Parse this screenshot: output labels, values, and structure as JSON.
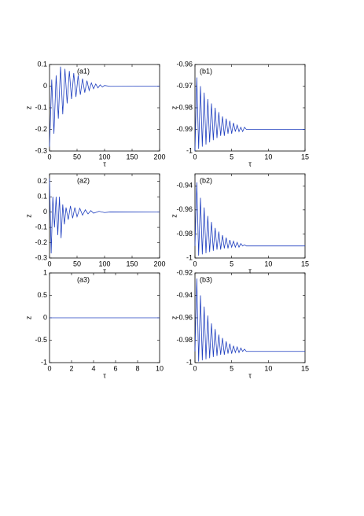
{
  "chart_data": [
    {
      "type": "line",
      "label": "(a1)",
      "xlabel": "τ",
      "ylabel": "z",
      "color": "#1f3fbf",
      "x": [
        0,
        4,
        8,
        12,
        16,
        20,
        24,
        28,
        32,
        36,
        40,
        44,
        48,
        52,
        56,
        60,
        64,
        68,
        72,
        76,
        80,
        84,
        88,
        92,
        96,
        100,
        110,
        200
      ],
      "values": [
        -0.28,
        0.03,
        -0.22,
        0.05,
        -0.15,
        0.09,
        -0.13,
        0.08,
        -0.08,
        0.07,
        -0.06,
        0.06,
        -0.05,
        0.05,
        -0.04,
        0.035,
        -0.03,
        0.025,
        -0.02,
        0.015,
        -0.012,
        0.01,
        -0.008,
        0.006,
        -0.004,
        0.003,
        -0.001,
        0
      ],
      "xlim": [
        0,
        200
      ],
      "xticks": [
        0,
        50,
        100,
        150,
        200
      ],
      "ylim": [
        -0.3,
        0.1
      ],
      "yticks": [
        0.1,
        0,
        -0.1,
        -0.2,
        -0.3
      ]
    },
    {
      "type": "line",
      "label": "(b1)",
      "xlabel": "τ",
      "ylabel": "z",
      "color": "#1f3fbf",
      "x": [
        0,
        0.25,
        0.5,
        0.75,
        1,
        1.25,
        1.5,
        1.75,
        2,
        2.25,
        2.5,
        2.75,
        3,
        3.25,
        3.5,
        3.75,
        4,
        4.25,
        4.5,
        4.75,
        5,
        5.25,
        5.5,
        5.75,
        6,
        6.25,
        6.5,
        6.75,
        7,
        15
      ],
      "values": [
        -1,
        -0.966,
        -0.999,
        -0.97,
        -0.998,
        -0.973,
        -0.997,
        -0.976,
        -0.996,
        -0.978,
        -0.995,
        -0.98,
        -0.994,
        -0.982,
        -0.993,
        -0.984,
        -0.993,
        -0.985,
        -0.992,
        -0.986,
        -0.992,
        -0.987,
        -0.991,
        -0.988,
        -0.991,
        -0.989,
        -0.991,
        -0.989,
        -0.99,
        -0.99
      ],
      "xlim": [
        0,
        15
      ],
      "xticks": [
        0,
        5,
        10,
        15
      ],
      "ylim": [
        -1,
        -0.96
      ],
      "yticks": [
        -0.96,
        -0.97,
        -0.98,
        -0.99,
        -1
      ]
    },
    {
      "type": "line",
      "label": "(a2)",
      "xlabel": "τ",
      "ylabel": "z",
      "color": "#1f3fbf",
      "x": [
        0,
        3,
        6,
        9,
        12,
        15,
        18,
        21,
        24,
        27,
        30,
        34,
        38,
        42,
        46,
        50,
        55,
        60,
        65,
        70,
        75,
        80,
        90,
        100,
        110,
        200
      ],
      "values": [
        0.22,
        -0.27,
        0.1,
        -0.1,
        0.1,
        -0.15,
        0.1,
        -0.17,
        0.05,
        -0.08,
        0.03,
        -0.05,
        0.04,
        -0.04,
        0.03,
        -0.03,
        0.025,
        -0.02,
        0.015,
        -0.012,
        0.01,
        -0.007,
        0.005,
        -0.003,
        0.001,
        0
      ],
      "xlim": [
        0,
        200
      ],
      "xticks": [
        0,
        50,
        100,
        150,
        200
      ],
      "ylim": [
        -0.3,
        0.25
      ],
      "yticks": [
        0.2,
        0.1,
        0,
        -0.1,
        -0.2,
        -0.3
      ]
    },
    {
      "type": "line",
      "label": "(b2)",
      "xlabel": "τ",
      "ylabel": "z",
      "color": "#1f3fbf",
      "x": [
        0,
        0.25,
        0.5,
        0.75,
        1,
        1.25,
        1.5,
        1.75,
        2,
        2.25,
        2.5,
        2.75,
        3,
        3.25,
        3.5,
        3.75,
        4,
        4.25,
        4.5,
        4.75,
        5,
        5.25,
        5.5,
        5.75,
        6,
        6.25,
        6.5,
        6.75,
        7,
        15
      ],
      "values": [
        -0.99,
        -0.937,
        -0.998,
        -0.95,
        -0.997,
        -0.958,
        -0.996,
        -0.965,
        -0.995,
        -0.97,
        -0.994,
        -0.975,
        -0.993,
        -0.978,
        -0.993,
        -0.981,
        -0.992,
        -0.983,
        -0.992,
        -0.985,
        -0.991,
        -0.986,
        -0.991,
        -0.987,
        -0.991,
        -0.988,
        -0.99,
        -0.989,
        -0.99,
        -0.99
      ],
      "xlim": [
        0,
        15
      ],
      "xticks": [
        0,
        5,
        10,
        15
      ],
      "ylim": [
        -1,
        -0.93
      ],
      "yticks": [
        -0.94,
        -0.96,
        -0.98,
        -1
      ]
    },
    {
      "type": "line",
      "label": "(a3)",
      "xlabel": "τ",
      "ylabel": "z",
      "color": "#1f3fbf",
      "x": [
        0,
        10
      ],
      "values": [
        0,
        0
      ],
      "xlim": [
        0,
        10
      ],
      "xticks": [
        0,
        2,
        4,
        6,
        8,
        10
      ],
      "ylim": [
        -1,
        1
      ],
      "yticks": [
        1,
        0.5,
        0,
        -0.5,
        -1
      ]
    },
    {
      "type": "line",
      "label": "(b3)",
      "xlabel": "τ",
      "ylabel": "z",
      "color": "#1f3fbf",
      "x": [
        0,
        0.25,
        0.5,
        0.75,
        1,
        1.25,
        1.5,
        1.75,
        2,
        2.25,
        2.5,
        2.75,
        3,
        3.25,
        3.5,
        3.75,
        4,
        4.25,
        4.5,
        4.75,
        5,
        5.25,
        5.5,
        5.75,
        6,
        6.25,
        6.5,
        6.75,
        7,
        15
      ],
      "values": [
        -0.99,
        -0.925,
        -0.999,
        -0.94,
        -0.998,
        -0.95,
        -0.997,
        -0.958,
        -0.996,
        -0.965,
        -0.995,
        -0.97,
        -0.994,
        -0.975,
        -0.993,
        -0.978,
        -0.993,
        -0.981,
        -0.992,
        -0.983,
        -0.992,
        -0.985,
        -0.991,
        -0.986,
        -0.991,
        -0.987,
        -0.99,
        -0.988,
        -0.99,
        -0.99
      ],
      "xlim": [
        0,
        15
      ],
      "xticks": [
        0,
        5,
        10,
        15
      ],
      "ylim": [
        -1,
        -0.92
      ],
      "yticks": [
        -0.92,
        -0.94,
        -0.96,
        -0.98,
        -1
      ]
    }
  ]
}
